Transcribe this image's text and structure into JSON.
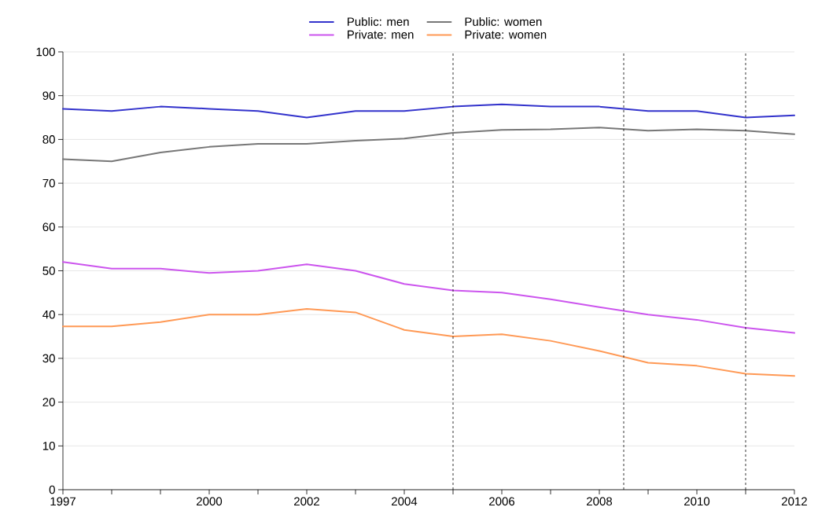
{
  "chart_data": {
    "type": "line",
    "x": [
      1997,
      1998,
      1999,
      2000,
      2001,
      2002,
      2003,
      2004,
      2005,
      2006,
      2007,
      2008,
      2009,
      2010,
      2011,
      2012
    ],
    "series": [
      {
        "name": "Public: men",
        "color": "#3333cc",
        "values": [
          87,
          86.5,
          87.5,
          87,
          86.5,
          85,
          86.5,
          86.5,
          87.5,
          88,
          87.5,
          87.5,
          86.5,
          86.5,
          85,
          85.5
        ]
      },
      {
        "name": "Public: women",
        "color": "#777777",
        "values": [
          75.5,
          75,
          77,
          78.3,
          79,
          79,
          79.7,
          80.2,
          81.5,
          82.2,
          82.3,
          82.7,
          82,
          82.3,
          82,
          81.2
        ]
      },
      {
        "name": "Private: men",
        "color": "#cc55ee",
        "values": [
          52,
          50.5,
          50.5,
          49.5,
          50,
          51.5,
          50,
          47,
          45.5,
          45,
          43.5,
          41.7,
          40,
          38.8,
          37,
          35.8
        ]
      },
      {
        "name": "Private: women",
        "color": "#ff9955",
        "values": [
          37.3,
          37.3,
          38.3,
          40,
          40,
          41.3,
          40.5,
          36.5,
          35,
          35.5,
          34,
          31.7,
          29,
          28.3,
          26.5,
          26
        ]
      }
    ],
    "xlim": [
      1997,
      2012
    ],
    "xticks": [
      1997,
      {
        "value": 1998,
        "label": null
      },
      {
        "value": 1999,
        "label": null
      },
      2000,
      {
        "value": 2001,
        "label": null
      },
      2002,
      {
        "value": 2003,
        "label": null
      },
      2004,
      {
        "value": 2005,
        "label": null
      },
      2006,
      {
        "value": 2007,
        "label": null
      },
      2008,
      {
        "value": 2009,
        "label": null
      },
      2010,
      {
        "value": 2011,
        "label": null
      },
      2012
    ],
    "ylim": [
      0,
      100
    ],
    "yticks": [
      0,
      10,
      20,
      30,
      40,
      50,
      60,
      70,
      80,
      90,
      100
    ],
    "grid": "y",
    "legend": "top",
    "marker": "none",
    "line_style": "solid",
    "ref_lines": [
      {
        "axis": "x",
        "value": 2005,
        "color": "#000000",
        "line_style": "dashed"
      },
      {
        "axis": "x",
        "value": 2008.5,
        "color": "#000000",
        "line_style": "dashed"
      },
      {
        "axis": "x",
        "value": 2011,
        "color": "#000000",
        "line_style": "dashed"
      }
    ]
  }
}
